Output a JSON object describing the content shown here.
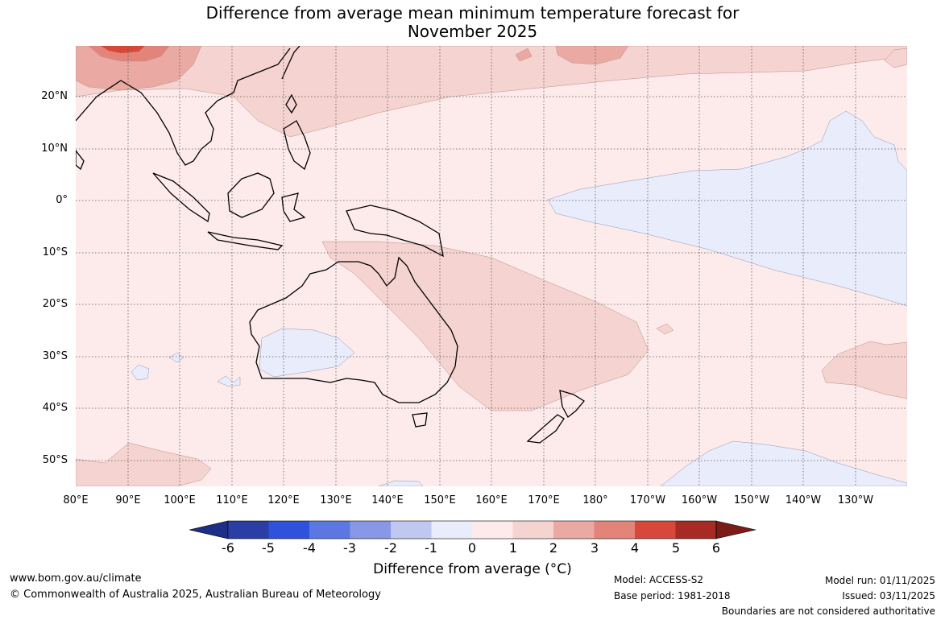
{
  "title": {
    "line1": "Difference from average mean minimum temperature forecast for",
    "line2": "November 2025"
  },
  "lat_labels": [
    "20°N",
    "10°N",
    "0°",
    "10°S",
    "20°S",
    "30°S",
    "40°S",
    "50°S"
  ],
  "lon_labels": [
    "80°E",
    "90°E",
    "100°E",
    "110°E",
    "120°E",
    "130°E",
    "140°E",
    "150°E",
    "160°E",
    "170°E",
    "180°",
    "170°W",
    "160°W",
    "150°W",
    "140°W",
    "130°W"
  ],
  "colorbar": {
    "ticks": [
      "-6",
      "-5",
      "-4",
      "-3",
      "-2",
      "-1",
      "0",
      "1",
      "2",
      "3",
      "4",
      "5",
      "6"
    ],
    "colors": [
      "#2a3ea5",
      "#2f52dc",
      "#5b78e2",
      "#8898e6",
      "#c0c8f2",
      "#e9ecfb",
      "#fcebea",
      "#f5d3d0",
      "#eaa9a3",
      "#e3847b",
      "#d6483a",
      "#a82a24"
    ],
    "under_color": "#1e2e86",
    "over_color": "#7a1c18",
    "label": "Difference from average (°C)"
  },
  "footer": {
    "website": "www.bom.gov.au/climate",
    "copyright": "© Commonwealth of Australia 2025, Australian Bureau of Meteorology",
    "model": "Model: ACCESS-S2",
    "base_period": "Base period: 1981-2018",
    "model_run": "Model run: 01/11/2025",
    "issued": "Issued: 03/11/2025",
    "disclaimer": "Boundaries are not considered authoritative"
  }
}
